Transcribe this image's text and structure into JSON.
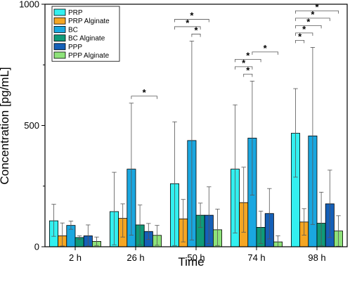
{
  "chart_data": {
    "type": "bar",
    "xlabel": "Time",
    "ylabel": "Concentration [pg/mL]",
    "ylim": [
      0,
      1000
    ],
    "yticks": [
      0,
      500,
      1000
    ],
    "categories": [
      "2 h",
      "26 h",
      "50 h",
      "74 h",
      "98 h"
    ],
    "grid": false,
    "legend_position": "top-left",
    "series": [
      {
        "name": "PRP",
        "color": "#33f0f0",
        "values": [
          107,
          145,
          260,
          320,
          468
        ],
        "error_upper": [
          175,
          307,
          515,
          585,
          652
        ],
        "error_lower": [
          43,
          8,
          5,
          57,
          287
        ]
      },
      {
        "name": "PRP Alginate",
        "color": "#f5a623",
        "values": [
          45,
          117,
          115,
          182,
          102
        ],
        "error_upper": [
          98,
          177,
          195,
          328,
          157
        ],
        "error_lower": [
          3,
          40,
          20,
          60,
          48
        ]
      },
      {
        "name": "BC",
        "color": "#1aa7e0",
        "values": [
          88,
          320,
          438,
          448,
          457
        ],
        "error_upper": [
          106,
          592,
          848,
          683,
          822
        ],
        "error_lower": [
          72,
          48,
          28,
          213,
          92
        ]
      },
      {
        "name": "BC Alginate",
        "color": "#0f9a78",
        "values": [
          38,
          90,
          130,
          80,
          97
        ],
        "error_upper": [
          45,
          172,
          180,
          147,
          225
        ],
        "error_lower": [
          30,
          8,
          80,
          13,
          5
        ]
      },
      {
        "name": "PPP",
        "color": "#1560b8",
        "values": [
          45,
          63,
          130,
          137,
          177
        ],
        "error_upper": [
          90,
          96,
          247,
          240,
          316
        ],
        "error_lower": [
          3,
          30,
          13,
          32,
          38
        ]
      },
      {
        "name": "PPP Alginate",
        "color": "#8ee27a",
        "values": [
          22,
          47,
          70,
          20,
          65
        ],
        "error_upper": [
          40,
          88,
          155,
          45,
          128
        ],
        "error_lower": [
          5,
          6,
          5,
          0,
          2
        ]
      }
    ],
    "significance": [
      {
        "category": "26 h",
        "pairs": [
          [
            2,
            5
          ]
        ],
        "label": "*"
      },
      {
        "category": "50 h",
        "pairs": [
          [
            2,
            3
          ],
          [
            0,
            3
          ],
          [
            0,
            4
          ]
        ],
        "label": "*"
      },
      {
        "category": "74 h",
        "pairs": [
          [
            1,
            2
          ],
          [
            0,
            2
          ],
          [
            0,
            3
          ],
          [
            2,
            5
          ]
        ],
        "label": "*"
      },
      {
        "category": "98 h",
        "pairs": [
          [
            0,
            1
          ],
          [
            0,
            2
          ],
          [
            0,
            3
          ],
          [
            0,
            4
          ],
          [
            0,
            5
          ]
        ],
        "label": "*"
      }
    ]
  }
}
